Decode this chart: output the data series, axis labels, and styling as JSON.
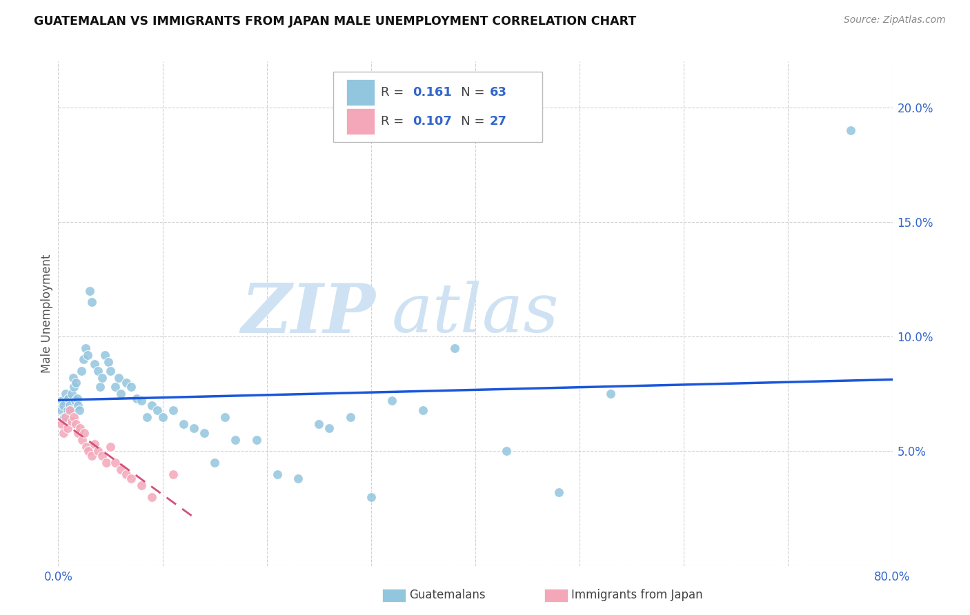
{
  "title": "GUATEMALAN VS IMMIGRANTS FROM JAPAN MALE UNEMPLOYMENT CORRELATION CHART",
  "source": "Source: ZipAtlas.com",
  "ylabel": "Male Unemployment",
  "xlim": [
    0.0,
    0.8
  ],
  "ylim": [
    0.0,
    0.22
  ],
  "xticks": [
    0.0,
    0.1,
    0.2,
    0.3,
    0.4,
    0.5,
    0.6,
    0.7,
    0.8
  ],
  "xticklabels": [
    "0.0%",
    "",
    "",
    "",
    "",
    "",
    "",
    "",
    "80.0%"
  ],
  "yticks": [
    0.0,
    0.05,
    0.1,
    0.15,
    0.2
  ],
  "ytick_right_labels": [
    "",
    "5.0%",
    "10.0%",
    "15.0%",
    "20.0%"
  ],
  "guatemalan_R": "0.161",
  "guatemalan_N": "63",
  "japan_R": "0.107",
  "japan_N": "27",
  "blue_color": "#92c5de",
  "pink_color": "#f4a7b9",
  "line_blue": "#1a56db",
  "line_pink": "#d44f7a",
  "guatemalan_x": [
    0.003,
    0.004,
    0.005,
    0.006,
    0.007,
    0.008,
    0.009,
    0.01,
    0.011,
    0.012,
    0.013,
    0.014,
    0.015,
    0.016,
    0.017,
    0.018,
    0.019,
    0.02,
    0.022,
    0.024,
    0.026,
    0.028,
    0.03,
    0.032,
    0.035,
    0.038,
    0.04,
    0.042,
    0.045,
    0.048,
    0.05,
    0.055,
    0.058,
    0.06,
    0.065,
    0.07,
    0.075,
    0.08,
    0.085,
    0.09,
    0.095,
    0.1,
    0.11,
    0.12,
    0.13,
    0.14,
    0.15,
    0.16,
    0.17,
    0.19,
    0.21,
    0.23,
    0.25,
    0.26,
    0.28,
    0.3,
    0.32,
    0.35,
    0.38,
    0.43,
    0.48,
    0.53,
    0.76
  ],
  "guatemalan_y": [
    0.068,
    0.072,
    0.07,
    0.065,
    0.075,
    0.063,
    0.068,
    0.073,
    0.07,
    0.068,
    0.075,
    0.082,
    0.078,
    0.072,
    0.08,
    0.073,
    0.07,
    0.068,
    0.085,
    0.09,
    0.095,
    0.092,
    0.12,
    0.115,
    0.088,
    0.085,
    0.078,
    0.082,
    0.092,
    0.089,
    0.085,
    0.078,
    0.082,
    0.075,
    0.08,
    0.078,
    0.073,
    0.072,
    0.065,
    0.07,
    0.068,
    0.065,
    0.068,
    0.062,
    0.06,
    0.058,
    0.045,
    0.065,
    0.055,
    0.055,
    0.04,
    0.038,
    0.062,
    0.06,
    0.065,
    0.03,
    0.072,
    0.068,
    0.095,
    0.05,
    0.032,
    0.075,
    0.19
  ],
  "japan_x": [
    0.003,
    0.005,
    0.007,
    0.009,
    0.011,
    0.013,
    0.015,
    0.017,
    0.019,
    0.021,
    0.023,
    0.025,
    0.027,
    0.029,
    0.032,
    0.035,
    0.038,
    0.042,
    0.046,
    0.05,
    0.055,
    0.06,
    0.065,
    0.07,
    0.08,
    0.09,
    0.11
  ],
  "japan_y": [
    0.062,
    0.058,
    0.065,
    0.06,
    0.068,
    0.063,
    0.065,
    0.062,
    0.058,
    0.06,
    0.055,
    0.058,
    0.052,
    0.05,
    0.048,
    0.053,
    0.05,
    0.048,
    0.045,
    0.052,
    0.045,
    0.042,
    0.04,
    0.038,
    0.035,
    0.03,
    0.04
  ],
  "watermark_zip_color": "#cfe2f3",
  "watermark_atlas_color": "#cfe2f3"
}
